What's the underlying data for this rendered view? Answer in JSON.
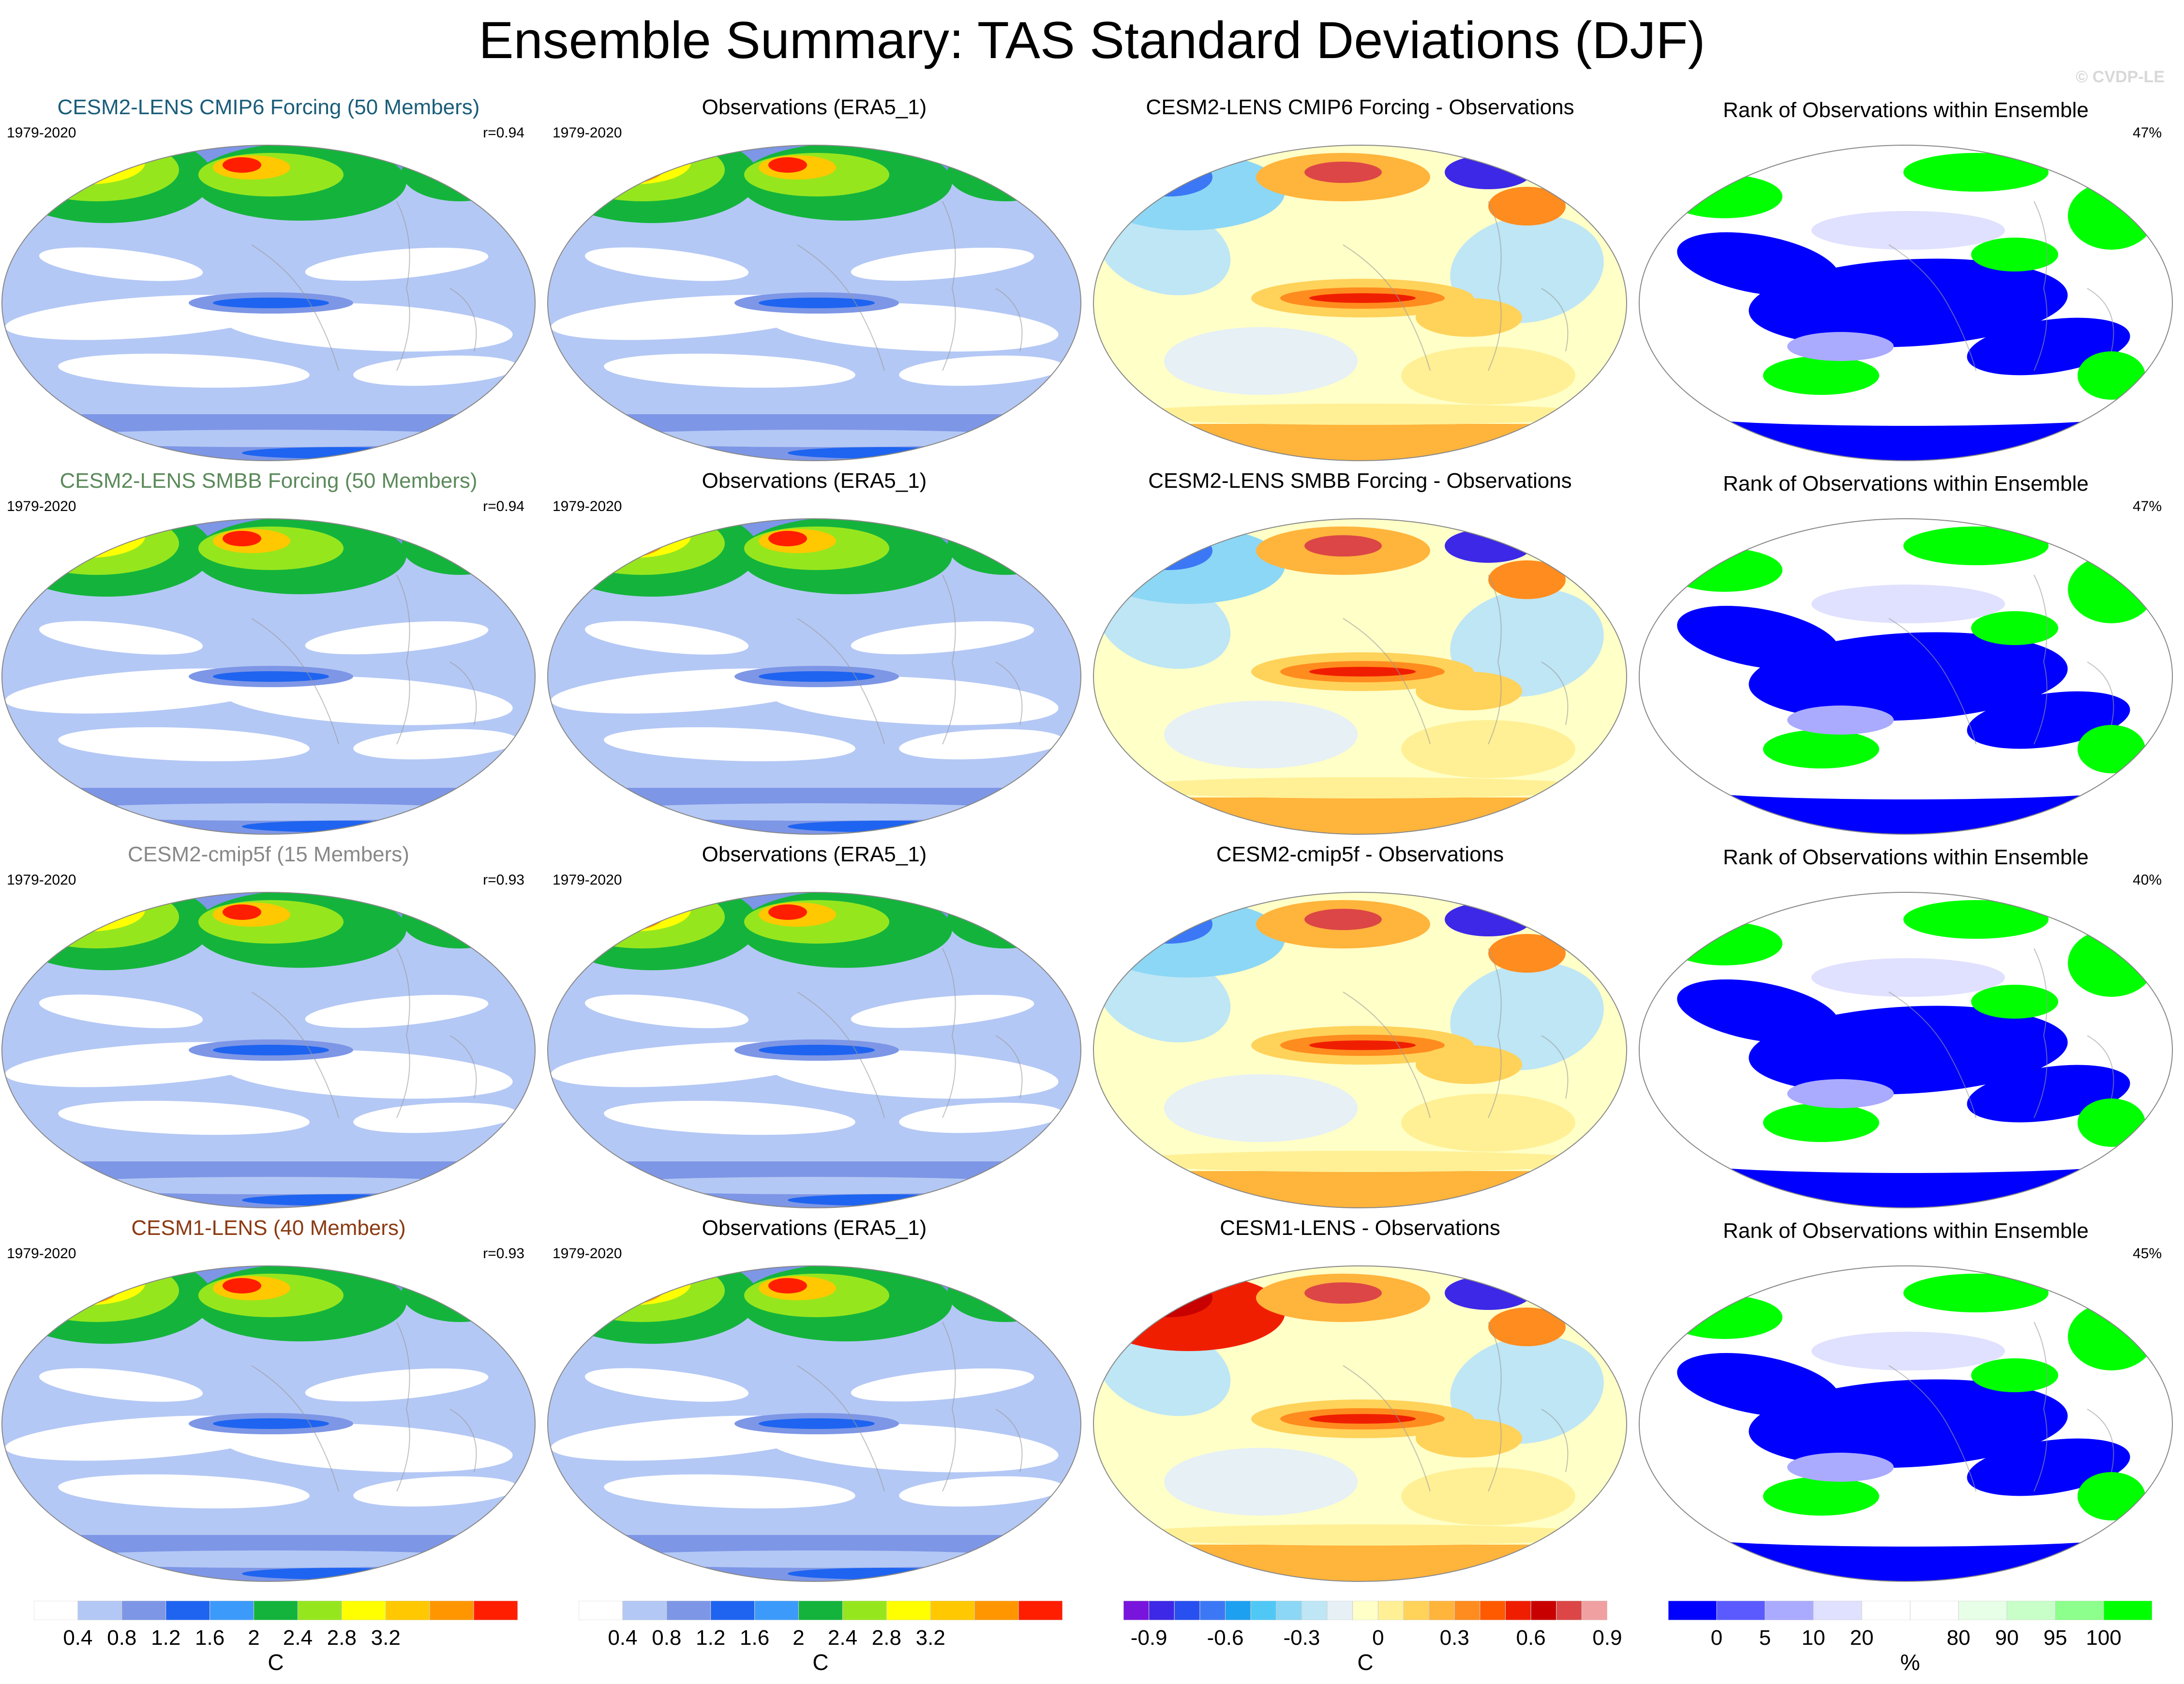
{
  "title": "Ensemble Summary: TAS Standard Deviations (DJF)",
  "watermark": "© CVDP-LE",
  "rows": [
    {
      "model": {
        "title": "CESM2-LENS CMIP6 Forcing (50 Members)",
        "title_color": "#1a5d7a",
        "period": "1979-2020",
        "stat": "r=0.94"
      },
      "obs": {
        "title": "Observations (ERA5_1)",
        "period": "1979-2020"
      },
      "diff": {
        "title": "CESM2-LENS CMIP6 Forcing - Observations"
      },
      "rank": {
        "title": "Rank of Observations within Ensemble",
        "stat": "47%"
      }
    },
    {
      "model": {
        "title": "CESM2-LENS SMBB Forcing (50 Members)",
        "title_color": "#5b8a5a",
        "period": "1979-2020",
        "stat": "r=0.94"
      },
      "obs": {
        "title": "Observations (ERA5_1)",
        "period": "1979-2020"
      },
      "diff": {
        "title": "CESM2-LENS SMBB Forcing - Observations"
      },
      "rank": {
        "title": "Rank of Observations within Ensemble",
        "stat": "47%"
      }
    },
    {
      "model": {
        "title": "CESM2-cmip5f (15 Members)",
        "title_color": "#888888",
        "period": "1979-2020",
        "stat": "r=0.93"
      },
      "obs": {
        "title": "Observations (ERA5_1)",
        "period": "1979-2020"
      },
      "diff": {
        "title": "CESM2-cmip5f - Observations"
      },
      "rank": {
        "title": "Rank of Observations within Ensemble",
        "stat": "40%"
      }
    },
    {
      "model": {
        "title": "CESM1-LENS (40 Members)",
        "title_color": "#8b3a12",
        "period": "1979-2020",
        "stat": "r=0.93"
      },
      "obs": {
        "title": "Observations (ERA5_1)",
        "period": "1979-2020"
      },
      "diff": {
        "title": "CESM1-LENS - Observations"
      },
      "rank": {
        "title": "Rank of Observations within Ensemble",
        "stat": "45%"
      }
    }
  ],
  "colorbars": [
    {
      "unit": "C",
      "colors": [
        "#ffffff",
        "#b4c8f5",
        "#7d96e6",
        "#1e64f0",
        "#3c9bfa",
        "#14b43c",
        "#96e61e",
        "#ffff00",
        "#ffc800",
        "#ff9600",
        "#ff1e00"
      ],
      "ticks": [
        "0.4",
        "0.8",
        "1.2",
        "1.6",
        "2",
        "2.4",
        "2.8",
        "3.2"
      ]
    },
    {
      "unit": "C",
      "colors": [
        "#ffffff",
        "#b4c8f5",
        "#7d96e6",
        "#1e64f0",
        "#3c9bfa",
        "#14b43c",
        "#96e61e",
        "#ffff00",
        "#ffc800",
        "#ff9600",
        "#ff1e00"
      ],
      "ticks": [
        "0.4",
        "0.8",
        "1.2",
        "1.6",
        "2",
        "2.4",
        "2.8",
        "3.2"
      ]
    },
    {
      "unit": "C",
      "colors": [
        "#7814dc",
        "#3c28e6",
        "#2850f0",
        "#3c78f5",
        "#1ea0f0",
        "#50c8f5",
        "#8cd7f5",
        "#bee6f5",
        "#e6f0f5",
        "#ffffc8",
        "#fff096",
        "#ffd25a",
        "#ffb43c",
        "#ff8c1e",
        "#ff5a00",
        "#f01e00",
        "#c80000",
        "#dc4646",
        "#f0a0a0"
      ],
      "ticks": [
        "-0.9",
        "-0.6",
        "-0.3",
        "0",
        "0.3",
        "0.6",
        "0.9"
      ]
    },
    {
      "unit": "%",
      "colors": [
        "#0000ff",
        "#5a5aff",
        "#aaaaff",
        "#e0e0ff",
        "#ffffff",
        "#ffffff",
        "#e6ffe6",
        "#c8ffc8",
        "#8cff8c",
        "#00ff00"
      ],
      "ticks": [
        "0",
        "5",
        "10",
        "20",
        "80",
        "90",
        "95",
        "100"
      ]
    }
  ]
}
